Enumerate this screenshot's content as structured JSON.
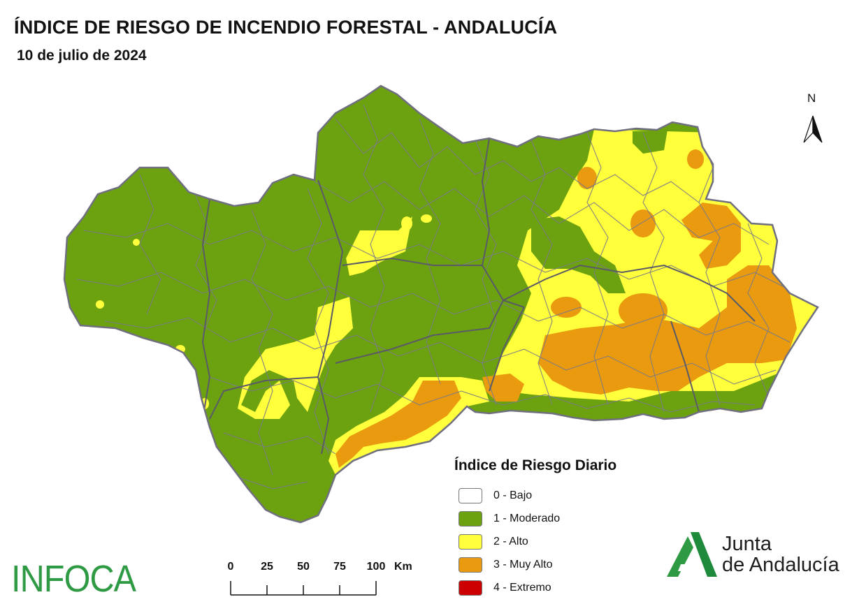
{
  "title": "ÍNDICE DE RIESGO DE INCENDIO FORESTAL - ANDALUCÍA",
  "date": "10 de julio de 2024",
  "north_label": "N",
  "legend": {
    "title": "Índice de Riesgo Diario",
    "items": [
      {
        "label": "0 - Bajo",
        "color": "#ffffff"
      },
      {
        "label": "1 - Moderado",
        "color": "#6ca10f"
      },
      {
        "label": "2 - Alto",
        "color": "#ffff3c"
      },
      {
        "label": "3 - Muy Alto",
        "color": "#e99a0f"
      },
      {
        "label": "4 - Extremo",
        "color": "#cc0000"
      }
    ]
  },
  "scale": {
    "ticks": [
      "0",
      "25",
      "50",
      "75",
      "100"
    ],
    "unit": "Km"
  },
  "logos": {
    "infoca": "INFOCA",
    "junta_line1": "Junta",
    "junta_line2": "de Andalucía"
  },
  "colors": {
    "moderate": "#6ca10f",
    "high": "#ffff3c",
    "very_high": "#e99a0f",
    "border": "#6f6f7f",
    "logo_green": "#2e9a43"
  }
}
